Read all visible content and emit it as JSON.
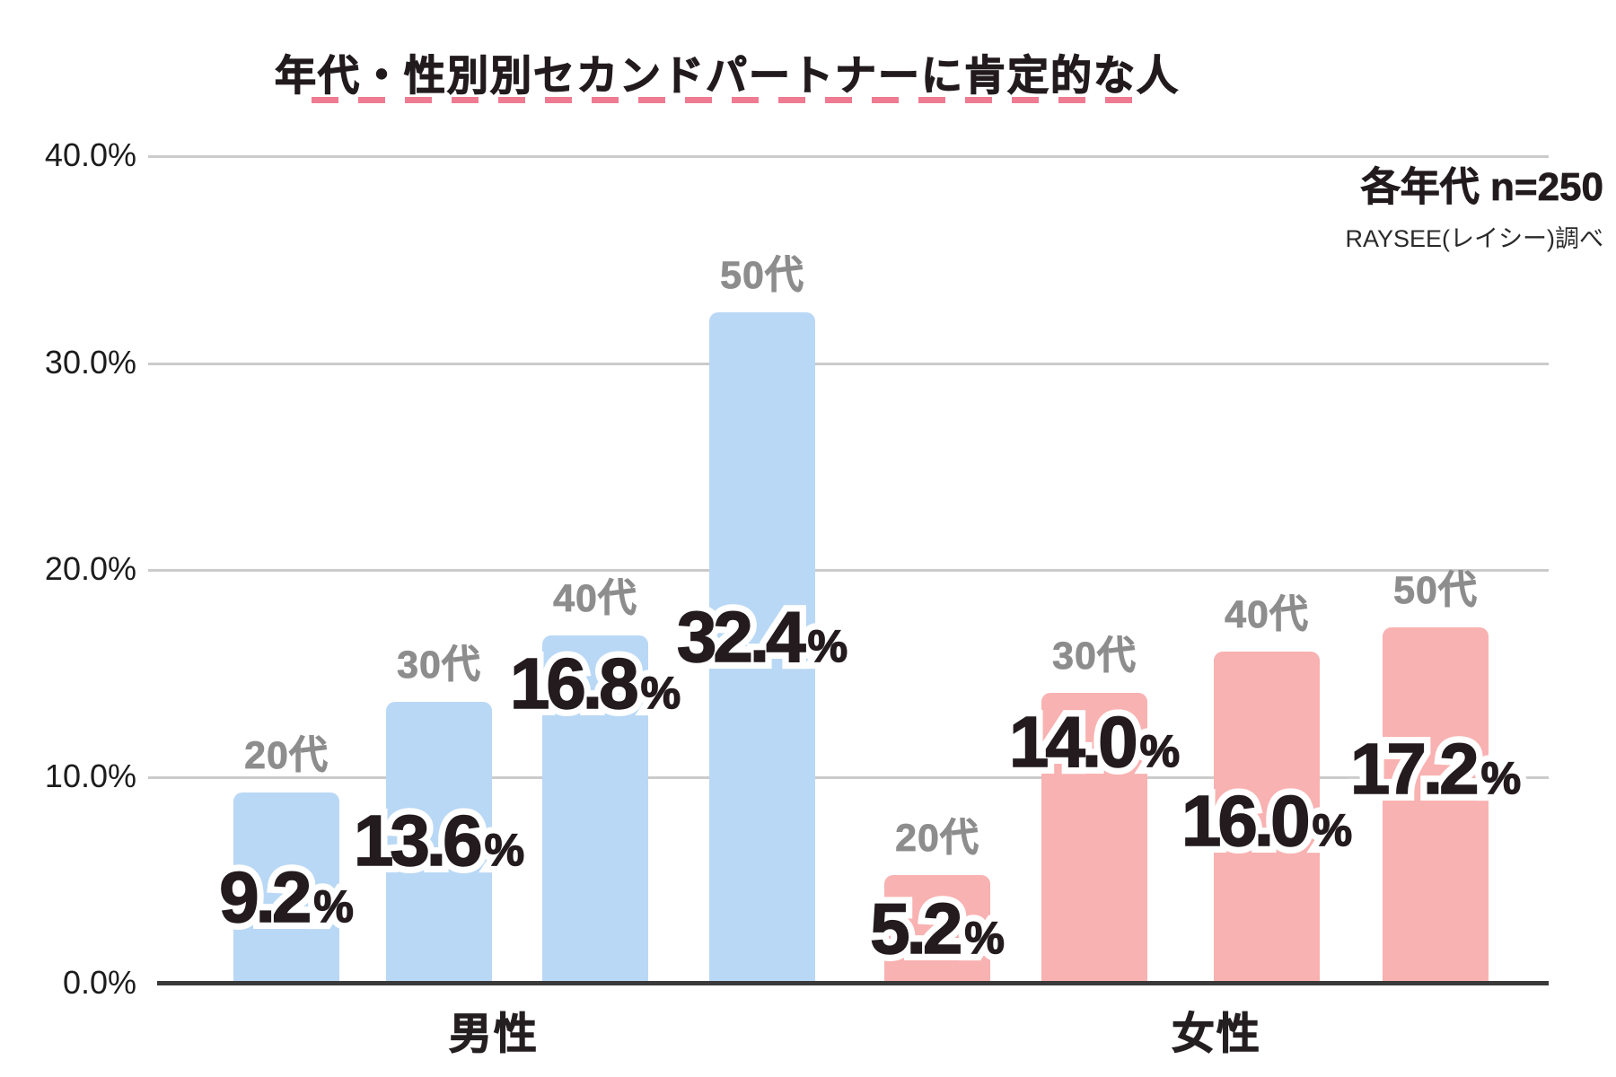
{
  "title": "年代・性別別セカンドパートナーに肯定的な人",
  "annotation": {
    "sample_size": "各年代 n=250",
    "source": "RAYSEE(レイシー)調べ"
  },
  "colors": {
    "male_bar": "#b9d8f5",
    "female_bar": "#f8b2b1",
    "underline_pink": "#ef7b92",
    "age_label_gray": "#8d8d8d",
    "gridline": "#cbcbcb",
    "axis": "#3a3a3a",
    "text": "#221b1e"
  },
  "chart_data": {
    "type": "bar",
    "title": "年代・性別別セカンドパートナーに肯定的な人",
    "xlabel": "",
    "ylabel": "",
    "unit": "%",
    "ylim": [
      0,
      40
    ],
    "grid": true,
    "y_ticks": [
      "0.0%",
      "10.0%",
      "20.0%",
      "30.0%",
      "40.0%"
    ],
    "categories": [
      "20代",
      "30代",
      "40代",
      "50代"
    ],
    "series": [
      {
        "name": "男性",
        "color": "#b9d8f5",
        "values": [
          9.2,
          13.6,
          16.8,
          32.4
        ]
      },
      {
        "name": "女性",
        "color": "#f8b2b1",
        "values": [
          5.2,
          14.0,
          16.0,
          17.2
        ]
      }
    ],
    "bars": [
      {
        "group": "男性",
        "age": "20代",
        "value": 9.2,
        "display": "9.2"
      },
      {
        "group": "男性",
        "age": "30代",
        "value": 13.6,
        "display": "13.6"
      },
      {
        "group": "男性",
        "age": "40代",
        "value": 16.8,
        "display": "16.8"
      },
      {
        "group": "男性",
        "age": "50代",
        "value": 32.4,
        "display": "32.4"
      },
      {
        "group": "女性",
        "age": "20代",
        "value": 5.2,
        "display": "5.2"
      },
      {
        "group": "女性",
        "age": "30代",
        "value": 14.0,
        "display": "14.0"
      },
      {
        "group": "女性",
        "age": "40代",
        "value": 16.0,
        "display": "16.0"
      },
      {
        "group": "女性",
        "age": "50代",
        "value": 17.2,
        "display": "17.2"
      }
    ]
  }
}
